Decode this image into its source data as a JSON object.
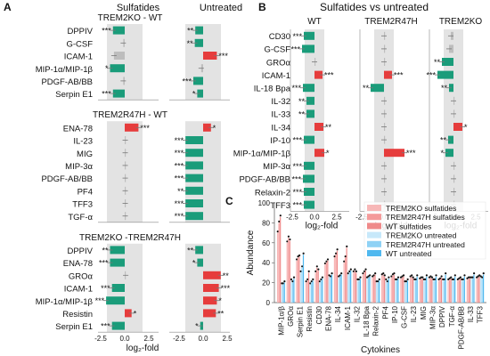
{
  "colors": {
    "green": "#1a9c7a",
    "red": "#e63c3c",
    "grey": "#bdbdbd",
    "shade": "#e3e3e3",
    "wt_sulf": "#ef8a8a",
    "r47_sulf": "#f49a9a",
    "ko_sulf": "#f7b7b7",
    "wt_untr": "#4fb8ef",
    "r47_untr": "#8fd2f5",
    "ko_untr": "#c7e8fa"
  },
  "panel_a": {
    "letter": "A",
    "col_headers": [
      "Sulfatides",
      "Untreated"
    ],
    "xlabel": "log₂-fold",
    "ticks": [
      "-2.5",
      "0.0",
      "2.5"
    ],
    "groups": [
      {
        "title": "TREM2KO - WT",
        "rows": [
          {
            "label": "DPPIV",
            "s": -1.2,
            "s_sig": "***",
            "u": -0.8,
            "u_sig": "**"
          },
          {
            "label": "G-CSF",
            "s": -0.15,
            "s_sig": "",
            "u": -0.85,
            "u_sig": "**"
          },
          {
            "label": "ICAM-1",
            "s": -1.1,
            "s_sig": "",
            "u": 1.4,
            "u_sig": "***"
          },
          {
            "label": "MIP-1α/MIP-1β",
            "s": -1.5,
            "s_sig": "*",
            "u": -0.2,
            "u_sig": ""
          },
          {
            "label": "PDGF-AB/BB",
            "s": -0.15,
            "s_sig": "",
            "u": -1.0,
            "u_sig": "***"
          },
          {
            "label": "Serpin E1",
            "s": -1.2,
            "s_sig": "***",
            "u": -0.6,
            "u_sig": "*"
          }
        ]
      },
      {
        "title": "TREM2R47H - WT",
        "rows": [
          {
            "label": "ENA-78",
            "s": 1.4,
            "s_sig": "***",
            "u": 0.8,
            "u_sig": "*"
          },
          {
            "label": "IL-23",
            "s": 0.05,
            "s_sig": "",
            "u": -1.8,
            "u_sig": "***"
          },
          {
            "label": "MIG",
            "s": 0.05,
            "s_sig": "",
            "u": -1.8,
            "u_sig": "***"
          },
          {
            "label": "MIP-3α",
            "s": 0.05,
            "s_sig": "",
            "u": -1.8,
            "u_sig": "***"
          },
          {
            "label": "PDGF-AB/BB",
            "s": 0.05,
            "s_sig": "",
            "u": -1.8,
            "u_sig": "***"
          },
          {
            "label": "PF4",
            "s": 0.05,
            "s_sig": "",
            "u": -1.8,
            "u_sig": "**"
          },
          {
            "label": "TFF3",
            "s": 0.05,
            "s_sig": "",
            "u": -1.8,
            "u_sig": "***"
          },
          {
            "label": "TGF-α",
            "s": 0.05,
            "s_sig": "",
            "u": -1.8,
            "u_sig": "***"
          }
        ]
      },
      {
        "title": "TREM2KO -TREM2R47H",
        "rows": [
          {
            "label": "DPPIV",
            "s": -1.5,
            "s_sig": "**",
            "u": -0.8,
            "u_sig": "**"
          },
          {
            "label": "ENA-78",
            "s": -1.5,
            "s_sig": "***",
            "u": -0.6,
            "u_sig": "*"
          },
          {
            "label": "GROα",
            "s": 0.1,
            "s_sig": "",
            "u": 1.8,
            "u_sig": "**"
          },
          {
            "label": "ICAM-1",
            "s": -1.3,
            "s_sig": "***",
            "u": 1.6,
            "u_sig": "***"
          },
          {
            "label": "MIP-1α/MIP-1β",
            "s": -1.9,
            "s_sig": "***",
            "u": 1.4,
            "u_sig": "*"
          },
          {
            "label": "Resistin",
            "s": 0.7,
            "s_sig": "*",
            "u": 1.3,
            "u_sig": "**"
          },
          {
            "label": "Serpin E1",
            "s": -1.3,
            "s_sig": "***",
            "u": -0.3,
            "u_sig": "*"
          }
        ]
      }
    ]
  },
  "panel_b": {
    "letter": "B",
    "title": "Sulfatides vs untreated",
    "col_headers": [
      "WT",
      "TREM2R47H",
      "TREM2KO"
    ],
    "xlabel": "log₂-fold",
    "ticks": [
      "-2.5",
      "0.0",
      "2.5"
    ],
    "rows": [
      {
        "label": "CD30",
        "v": [
          [
            -1.2,
            "***"
          ],
          [
            0.0,
            ""
          ],
          [
            -0.3,
            ""
          ]
        ]
      },
      {
        "label": "G-CSF",
        "v": [
          [
            -1.4,
            "***"
          ],
          [
            0.0,
            ""
          ],
          [
            -0.5,
            ""
          ]
        ]
      },
      {
        "label": "GROα",
        "v": [
          [
            0.0,
            ""
          ],
          [
            0.0,
            ""
          ],
          [
            -1.3,
            "**"
          ]
        ]
      },
      {
        "label": "ICAM-1",
        "v": [
          [
            0.9,
            "***"
          ],
          [
            0.9,
            "***"
          ],
          [
            -1.8,
            "***"
          ]
        ]
      },
      {
        "label": "IL-18 Bpa",
        "v": [
          [
            -1.3,
            "***"
          ],
          [
            -1.5,
            "**"
          ],
          [
            -0.5,
            "**"
          ]
        ]
      },
      {
        "label": "IL-32",
        "v": [
          [
            -0.9,
            "**"
          ],
          [
            0.0,
            ""
          ],
          [
            0.0,
            ""
          ]
        ]
      },
      {
        "label": "IL-33",
        "v": [
          [
            -0.9,
            "**"
          ],
          [
            0.0,
            ""
          ],
          [
            0.0,
            ""
          ]
        ]
      },
      {
        "label": "IL-34",
        "v": [
          [
            1.0,
            "**"
          ],
          [
            0.0,
            ""
          ],
          [
            1.0,
            "*"
          ]
        ]
      },
      {
        "label": "IP-10",
        "v": [
          [
            -1.2,
            "***"
          ],
          [
            0.0,
            ""
          ],
          [
            -0.6,
            "**"
          ]
        ]
      },
      {
        "label": "MIP-1α/MIP-1β",
        "v": [
          [
            1.1,
            "*"
          ],
          [
            2.3,
            "***"
          ],
          [
            -0.9,
            "*"
          ]
        ]
      },
      {
        "label": "MIP-3α",
        "v": [
          [
            -1.2,
            "***"
          ],
          [
            0.0,
            ""
          ],
          [
            0.0,
            ""
          ]
        ]
      },
      {
        "label": "PDGF-AB/BB",
        "v": [
          [
            -1.3,
            "***"
          ],
          [
            0.0,
            ""
          ],
          [
            0.0,
            ""
          ]
        ]
      },
      {
        "label": "Relaxin-2",
        "v": [
          [
            -1.2,
            "***"
          ],
          [
            0.0,
            ""
          ],
          [
            0.0,
            ""
          ]
        ]
      },
      {
        "label": "TFF3",
        "v": [
          [
            -1.2,
            "***"
          ],
          [
            0.0,
            ""
          ],
          [
            0.0,
            ""
          ]
        ]
      }
    ]
  },
  "chart_data": {
    "type": "bar",
    "panel": "C",
    "xlabel": "Cytokines",
    "ylabel": "Abundance",
    "ylim": [
      0,
      100
    ],
    "yticks": [
      0,
      20,
      40,
      60,
      80,
      100
    ],
    "legend_placement": "top-right",
    "categories": [
      "MIP-1α/β",
      "GROα",
      "Serpin E1",
      "Resistin",
      "CD30",
      "ENA-78",
      "IL-34",
      "ICAM-1",
      "IL-32",
      "IL-18 Bpa",
      "Relaxin-2",
      "PF4",
      "IP-10",
      "G-CSF",
      "IL-23",
      "MIG",
      "MIP-3α",
      "DPPIV",
      "TGF-α",
      "PDGF-AB/BB",
      "IL-33",
      "TFF3"
    ],
    "series": [
      {
        "name": "TREM2KO sulfatides",
        "color_key": "ko_sulf",
        "values": [
          70,
          60,
          42,
          20,
          30,
          38,
          45,
          40,
          30,
          28,
          25,
          27,
          25,
          24,
          25,
          23,
          24,
          22,
          22,
          22,
          23,
          24
        ]
      },
      {
        "name": "TREM2R47H sulfatides",
        "color_key": "r47_sulf",
        "values": [
          80,
          65,
          45,
          22,
          35,
          40,
          48,
          45,
          32,
          30,
          26,
          28,
          27,
          25,
          26,
          24,
          25,
          23,
          23,
          23,
          24,
          25
        ]
      },
      {
        "name": "WT sulfatides",
        "color_key": "wt_sulf",
        "values": [
          86,
          62,
          46,
          30,
          32,
          42,
          52,
          55,
          30,
          32,
          28,
          26,
          28,
          26,
          24,
          24,
          24,
          25,
          24,
          24,
          24,
          26
        ]
      },
      {
        "name": "TREM2KO untreated",
        "color_key": "ko_untr",
        "values": [
          18,
          22,
          30,
          18,
          20,
          26,
          25,
          28,
          22,
          24,
          20,
          22,
          22,
          20,
          22,
          22,
          22,
          22,
          22,
          22,
          24,
          25
        ]
      },
      {
        "name": "TREM2R47H untreated",
        "color_key": "r47_untr",
        "values": [
          18,
          20,
          35,
          20,
          22,
          25,
          26,
          30,
          22,
          25,
          20,
          20,
          22,
          20,
          22,
          22,
          22,
          22,
          22,
          22,
          24,
          24
        ]
      },
      {
        "name": "WT untreated",
        "color_key": "wt_untr",
        "values": [
          20,
          24,
          48,
          22,
          24,
          28,
          28,
          32,
          24,
          26,
          22,
          24,
          24,
          22,
          26,
          26,
          26,
          28,
          26,
          26,
          28,
          28
        ]
      }
    ],
    "letter": "C"
  }
}
